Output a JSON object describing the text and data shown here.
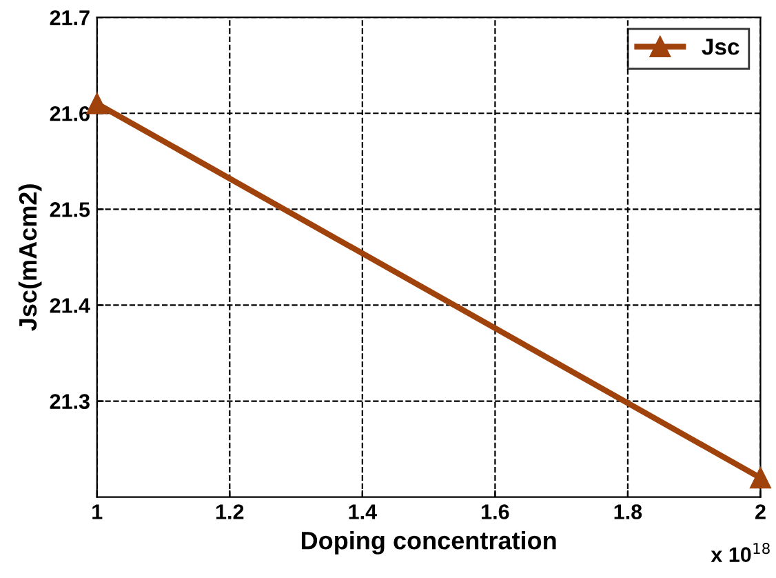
{
  "chart_data": {
    "type": "line",
    "xlabel": "Doping concentration",
    "ylabel": "Jsc(mAcm2)",
    "x": [
      1,
      2
    ],
    "series": [
      {
        "name": "Jsc",
        "color": "#a0420c",
        "values": [
          21.61,
          21.22
        ]
      }
    ],
    "xlim": [
      1,
      2
    ],
    "xticks": [
      1,
      1.2,
      1.4,
      1.6,
      1.8,
      2
    ],
    "ylim": [
      21.2,
      21.7
    ],
    "yticks": [
      21.3,
      21.4,
      21.5,
      21.6,
      21.7
    ],
    "grid": true,
    "legend": "top right",
    "marker": "triangle",
    "line_style": "solid",
    "annotations": [
      "x 10$^{18}$"
    ]
  }
}
